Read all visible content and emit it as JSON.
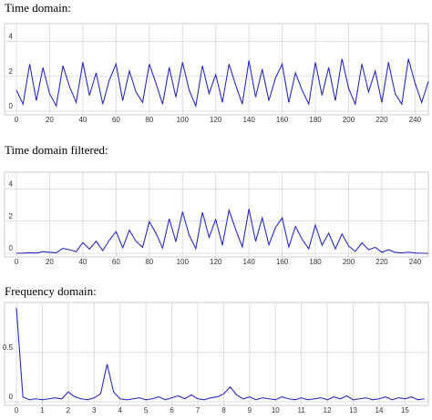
{
  "chart_data": [
    {
      "type": "line",
      "title": "Time domain:",
      "x": [
        0,
        4,
        8,
        12,
        16,
        20,
        24,
        28,
        32,
        36,
        40,
        44,
        48,
        52,
        56,
        60,
        64,
        68,
        72,
        76,
        80,
        84,
        88,
        92,
        96,
        100,
        104,
        108,
        112,
        116,
        120,
        124,
        128,
        132,
        136,
        140,
        144,
        148,
        152,
        156,
        160,
        164,
        168,
        172,
        176,
        180,
        184,
        188,
        192,
        196,
        200,
        204,
        208,
        212,
        216,
        220,
        224,
        228,
        232,
        236,
        240,
        244,
        248
      ],
      "values": [
        1.2,
        0.4,
        2.7,
        0.6,
        2.5,
        1.0,
        0.3,
        2.6,
        1.4,
        0.5,
        2.8,
        0.9,
        2.2,
        0.4,
        1.8,
        2.7,
        0.6,
        2.3,
        1.1,
        0.5,
        2.7,
        1.6,
        0.4,
        2.5,
        0.8,
        2.8,
        1.2,
        0.3,
        2.6,
        1.0,
        2.1,
        0.5,
        2.7,
        1.5,
        0.4,
        2.9,
        0.8,
        2.4,
        0.6,
        1.9,
        2.7,
        0.5,
        2.2,
        1.2,
        0.4,
        2.8,
        0.9,
        2.5,
        0.6,
        3.0,
        1.3,
        0.4,
        2.7,
        1.1,
        2.3,
        0.5,
        2.8,
        1.0,
        0.4,
        3.0,
        1.6,
        0.5,
        1.7
      ],
      "color": "#2b2bbf",
      "xlim": [
        0,
        248
      ],
      "ylim": [
        0,
        4.7
      ],
      "xticks": [
        0,
        20,
        40,
        60,
        80,
        100,
        120,
        140,
        160,
        180,
        200,
        220,
        240
      ],
      "yticks": [
        0,
        2,
        4
      ],
      "grid": true
    },
    {
      "type": "line",
      "title": "Time domain filtered:",
      "x": [
        0,
        4,
        8,
        12,
        16,
        20,
        24,
        28,
        32,
        36,
        40,
        44,
        48,
        52,
        56,
        60,
        64,
        68,
        72,
        76,
        80,
        84,
        88,
        92,
        96,
        100,
        104,
        108,
        112,
        116,
        120,
        124,
        128,
        132,
        136,
        140,
        144,
        148,
        152,
        156,
        160,
        164,
        168,
        172,
        176,
        180,
        184,
        188,
        192,
        196,
        200,
        204,
        208,
        212,
        216,
        220,
        224,
        228,
        232,
        236,
        240,
        244,
        248
      ],
      "values": [
        0.0,
        0.01,
        0.03,
        0.01,
        0.1,
        0.06,
        0.03,
        0.31,
        0.22,
        0.1,
        0.67,
        0.26,
        0.75,
        0.16,
        0.82,
        1.35,
        0.34,
        1.43,
        0.75,
        0.37,
        1.97,
        1.25,
        0.33,
        2.15,
        0.72,
        2.58,
        1.13,
        0.29,
        2.55,
        0.99,
        2.1,
        0.5,
        2.68,
        1.48,
        0.39,
        2.76,
        0.74,
        2.2,
        0.52,
        1.6,
        2.2,
        0.39,
        1.67,
        0.87,
        0.27,
        1.75,
        0.5,
        1.25,
        0.27,
        1.2,
        0.45,
        0.12,
        0.65,
        0.22,
        0.37,
        0.06,
        0.22,
        0.06,
        0.02,
        0.07,
        0.02,
        0.0,
        0.0
      ],
      "color": "#2b2bbf",
      "xlim": [
        0,
        248
      ],
      "ylim": [
        0,
        4.7
      ],
      "xticks": [
        0,
        20,
        40,
        60,
        80,
        100,
        120,
        140,
        160,
        180,
        200,
        220,
        240
      ],
      "yticks": [
        0,
        2,
        4
      ],
      "grid": true
    },
    {
      "type": "line",
      "title": "Frequency domain:",
      "x": [
        0,
        0.25,
        0.5,
        0.75,
        1,
        1.25,
        1.5,
        1.75,
        2,
        2.25,
        2.5,
        2.75,
        3,
        3.25,
        3.5,
        3.75,
        4,
        4.25,
        4.5,
        4.75,
        5,
        5.25,
        5.5,
        5.75,
        6,
        6.25,
        6.5,
        6.75,
        7,
        7.25,
        7.5,
        7.75,
        8,
        8.25,
        8.5,
        8.75,
        9,
        9.25,
        9.5,
        9.75,
        10,
        10.25,
        10.5,
        10.75,
        11,
        11.25,
        11.5,
        11.75,
        12,
        12.25,
        12.5,
        12.75,
        13,
        13.25,
        13.5,
        13.75,
        14,
        14.25,
        14.5,
        14.75,
        15,
        15.25,
        15.5,
        15.75
      ],
      "values": [
        0.95,
        0.05,
        0.02,
        0.03,
        0.02,
        0.03,
        0.04,
        0.03,
        0.1,
        0.05,
        0.03,
        0.02,
        0.04,
        0.08,
        0.38,
        0.1,
        0.03,
        0.02,
        0.03,
        0.04,
        0.02,
        0.03,
        0.05,
        0.02,
        0.04,
        0.06,
        0.03,
        0.07,
        0.03,
        0.02,
        0.04,
        0.05,
        0.08,
        0.15,
        0.07,
        0.03,
        0.05,
        0.02,
        0.04,
        0.03,
        0.02,
        0.05,
        0.03,
        0.02,
        0.04,
        0.02,
        0.03,
        0.04,
        0.02,
        0.05,
        0.03,
        0.06,
        0.02,
        0.03,
        0.04,
        0.02,
        0.03,
        0.05,
        0.02,
        0.04,
        0.03,
        0.05,
        0.02,
        0.03
      ],
      "color": "#2b2bbf",
      "xlim": [
        0,
        15.9
      ],
      "ylim": [
        0,
        0.95
      ],
      "xticks": [
        0,
        1,
        2,
        3,
        4,
        5,
        6,
        7,
        8,
        9,
        10,
        11,
        12,
        13,
        14,
        15
      ],
      "yticks": [
        0,
        0.5
      ],
      "grid": true
    }
  ]
}
